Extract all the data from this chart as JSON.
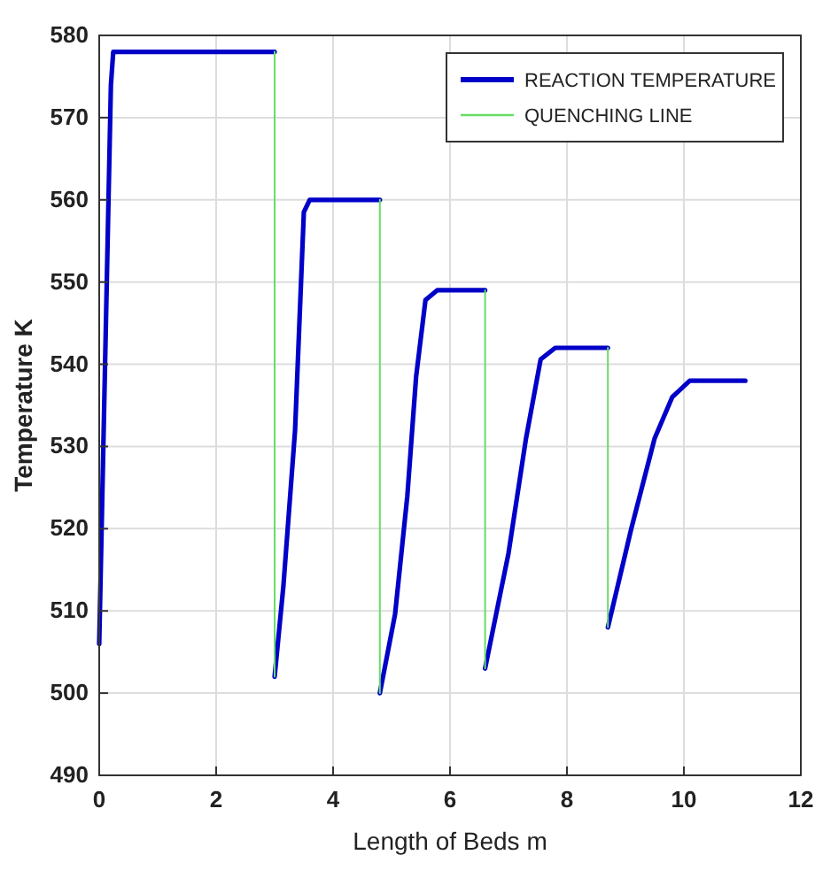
{
  "chart_data": {
    "type": "line",
    "xlabel": "Length of Beds m",
    "ylabel": "Temperature K",
    "xlim": [
      0,
      12
    ],
    "xticks": [
      0,
      2,
      4,
      6,
      8,
      10,
      12
    ],
    "ylim": [
      490,
      580
    ],
    "yticks": [
      490,
      500,
      510,
      520,
      530,
      540,
      550,
      560,
      570,
      580
    ],
    "grid": true,
    "legend": "top right",
    "line_style": "solid",
    "marker": "none",
    "series": [
      {
        "name": "REACTION TEMPERATURE",
        "color": "#0000c8",
        "x": [
          0,
          0.05,
          0.1,
          0.15,
          0.2,
          0.24,
          1,
          2,
          3.0
        ],
        "values": [
          506,
          523,
          540,
          557,
          574,
          578,
          578,
          578,
          578
        ]
      },
      {
        "name": "QUENCHING LINE",
        "color": "#66dd66",
        "x": [
          3.0,
          3.0
        ],
        "values": [
          578,
          502
        ]
      },
      {
        "color": "#0000c8",
        "x": [
          3.0,
          3.15,
          3.35,
          3.5,
          3.6,
          4,
          4.8
        ],
        "values": [
          502,
          513,
          532,
          558.5,
          560,
          560,
          560
        ]
      },
      {
        "color": "#66dd66",
        "x": [
          4.8,
          4.8
        ],
        "values": [
          560,
          500
        ]
      },
      {
        "color": "#0000c8",
        "x": [
          4.8,
          5.06,
          5.27,
          5.42,
          5.58,
          5.78,
          6,
          6.6
        ],
        "values": [
          500,
          509.6,
          524,
          538.5,
          547.8,
          549,
          549,
          549
        ]
      },
      {
        "color": "#66dd66",
        "x": [
          6.6,
          6.6
        ],
        "values": [
          549,
          503
        ]
      },
      {
        "color": "#0000c8",
        "x": [
          6.6,
          7.0,
          7.3,
          7.55,
          7.8,
          8.2,
          8.7
        ],
        "values": [
          503,
          517,
          531,
          540.6,
          542,
          542,
          542
        ]
      },
      {
        "color": "#66dd66",
        "x": [
          8.7,
          8.7
        ],
        "values": [
          542,
          508
        ]
      },
      {
        "color": "#0000c8",
        "x": [
          8.7,
          9.1,
          9.5,
          9.8,
          10.1,
          10.5,
          11.05
        ],
        "values": [
          508,
          520,
          531,
          536,
          538,
          538,
          538
        ]
      }
    ]
  }
}
